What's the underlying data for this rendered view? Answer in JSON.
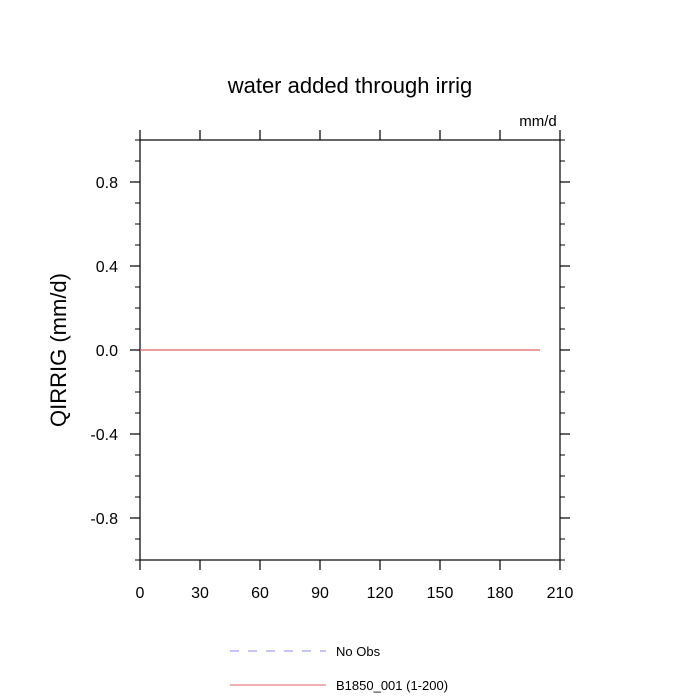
{
  "chart_data": {
    "type": "line",
    "title": "water added through irrig",
    "units_label": "mm/d",
    "ylabel": "QIRRIG  (mm/d)",
    "xlabel": "",
    "xlim": [
      0,
      210
    ],
    "ylim": [
      -1.0,
      1.0
    ],
    "x_ticks": [
      0,
      30,
      60,
      90,
      120,
      150,
      180,
      210
    ],
    "y_ticks": [
      -0.8,
      -0.4,
      0.0,
      0.4,
      0.8
    ],
    "x_tick_labels": [
      "0",
      "30",
      "60",
      "90",
      "120",
      "150",
      "180",
      "210"
    ],
    "y_tick_labels": [
      "-0.8",
      "-0.4",
      "0.0",
      "0.4",
      "0.8"
    ],
    "grid": false,
    "legend_position": "bottom",
    "series": [
      {
        "name": "No Obs",
        "color": "#8888ee",
        "dash": "dashed",
        "values": []
      },
      {
        "name": "B1850_001 (1-200)",
        "color": "#e06060",
        "dash": "solid",
        "x": [
          0,
          50,
          100,
          150,
          200
        ],
        "values": [
          0.0,
          0.0,
          0.0,
          0.0,
          0.0
        ]
      }
    ]
  }
}
